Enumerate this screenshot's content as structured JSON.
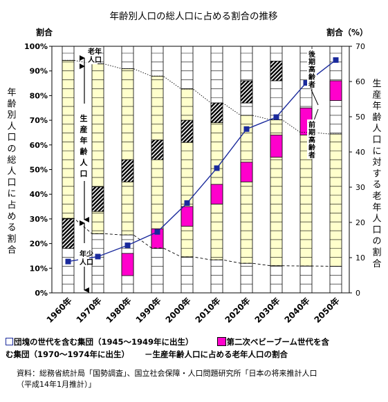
{
  "chart_data": {
    "type": "stacked-bar-with-lines",
    "title": "年齢別人口の総人口に占める割合の推移",
    "left_axis": {
      "unit_label": "割合",
      "label": "年齢別人口の総人口に占める割合",
      "ylim": [
        0,
        100
      ],
      "ticks": [
        "0%",
        "10%",
        "20%",
        "30%",
        "40%",
        "50%",
        "60%",
        "70%",
        "80%",
        "90%",
        "100%"
      ]
    },
    "right_axis": {
      "unit_label": "割合（%）",
      "label": "生産年齢人口に対する老年人口の割合",
      "ylim": [
        0,
        70
      ],
      "ticks": [
        "0",
        "10",
        "20",
        "30",
        "40",
        "50",
        "60",
        "70"
      ]
    },
    "categories": [
      "1960年",
      "1970年",
      "1980年",
      "1990年",
      "2000年",
      "2010年",
      "2020年",
      "2030年",
      "2040年",
      "2050年"
    ],
    "bars": {
      "youth_pct": [
        30.2,
        24.0,
        23.5,
        18.2,
        14.6,
        13.4,
        12.0,
        11.0,
        10.9,
        10.8
      ],
      "working_pct": [
        64.1,
        68.9,
        67.4,
        69.7,
        68.1,
        63.6,
        60.0,
        59.2,
        54.2,
        53.6
      ],
      "elderly_pct": [
        5.7,
        7.1,
        9.1,
        12.1,
        17.3,
        23.0,
        28.0,
        29.8,
        34.9,
        35.6
      ],
      "highlight_band_1": [
        [
          18,
          30
        ],
        [
          33,
          43
        ],
        [
          45,
          54
        ],
        [
          54,
          62
        ],
        [
          61,
          70
        ],
        [
          69,
          77
        ],
        [
          77,
          86
        ],
        [
          86,
          94
        ],
        null,
        null
      ],
      "highlight_band_2": [
        null,
        null,
        [
          7,
          16
        ],
        [
          18,
          26
        ],
        [
          27,
          35
        ],
        [
          36,
          44
        ],
        [
          45,
          53
        ],
        [
          55,
          64
        ],
        [
          64,
          75
        ],
        [
          78,
          86
        ]
      ]
    },
    "series": [
      {
        "name": "生産年齢人口に占める老年人口の割合",
        "values": [
          8.9,
          10.3,
          13.5,
          17.3,
          25.5,
          35.4,
          46.5,
          49.9,
          59.6,
          66.1
        ]
      }
    ],
    "legend": [
      {
        "marker": "square-outline",
        "label": "団塊の世代を含む集団（1945～1949年に出生）"
      },
      {
        "marker": "pink-square",
        "label": "第二次ベビーブーム世代を含む集団（1970～1974年に出生）"
      },
      {
        "marker": "line",
        "label": "生産年齢人口に占める老年人口の割合"
      }
    ],
    "annotations": {
      "elderly": "老年人口",
      "working": "生産年齢人口",
      "youth": "年少人口",
      "late_elderly": "後期高齢者",
      "early_elderly": "前期高齢者"
    },
    "grid": false
  },
  "legend_text": {
    "line1_a": "団塊の世代を含む集団（1945～1949年に出生）",
    "line1_b": "第二次ベビーブーム世代を含",
    "line2_a": "む集団（1970～1974年に出生）",
    "line2_b": "－生産年齢人口に占める老年人口の割合"
  },
  "source": {
    "line1": "資料：総務省統計局「国勢調査」、国立社会保障・人口問題研究所「日本の将来推計人口",
    "line2": "（平成14年1月推計）」"
  },
  "colors": {
    "cream": "#ffffcc",
    "pink": "#ff00cc",
    "line": "#1a2a9c",
    "ink": "#000000"
  }
}
